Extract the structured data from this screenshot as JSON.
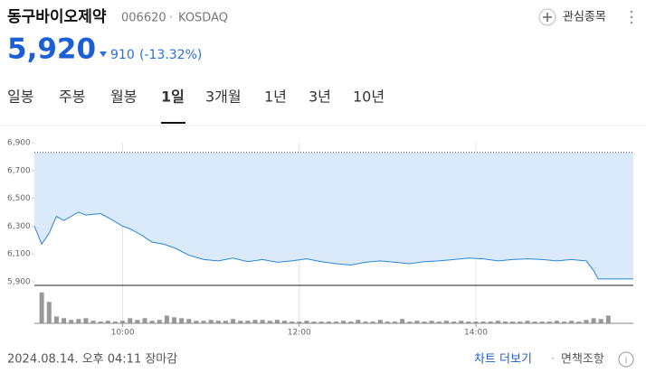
{
  "header": {
    "name": "동구바이오제약",
    "code": "006620",
    "market": "KOSDAQ",
    "watch": "관심종목"
  },
  "quote": {
    "price": "5,920",
    "change": "910",
    "change_pct": "(-13.32%)"
  },
  "tabs": [
    "일봉",
    "주봉",
    "월봉",
    "1일",
    "3개월",
    "1년",
    "3년",
    "10년"
  ],
  "chart_data": [
    {
      "type": "line",
      "color": "#2a86d8",
      "fill": "#dbeafa",
      "x": [
        540,
        545,
        550,
        555,
        560,
        570,
        575,
        585,
        592,
        600,
        605,
        612,
        620,
        628,
        636,
        645,
        655,
        665,
        675,
        685,
        695,
        705,
        715,
        725,
        735,
        745,
        755,
        765,
        775,
        785,
        795,
        805,
        815,
        825,
        835,
        845,
        855,
        865,
        875,
        885,
        895,
        905,
        915,
        920,
        923,
        947
      ],
      "values": [
        6300,
        6170,
        6250,
        6370,
        6340,
        6400,
        6380,
        6390,
        6350,
        6300,
        6280,
        6240,
        6185,
        6170,
        6140,
        6090,
        6060,
        6050,
        6070,
        6045,
        6060,
        6040,
        6050,
        6065,
        6045,
        6030,
        6020,
        6040,
        6050,
        6040,
        6030,
        6045,
        6050,
        6060,
        6070,
        6065,
        6050,
        6060,
        6065,
        6060,
        6050,
        6060,
        6050,
        5980,
        5920,
        5920
      ],
      "reference_line": 6830,
      "xlim": [
        540,
        947
      ],
      "ylim": [
        5900,
        6900
      ],
      "xticks": [
        {
          "value": 600,
          "label": "10:00"
        },
        {
          "value": 720,
          "label": "12:00"
        },
        {
          "value": 840,
          "label": "14:00"
        }
      ],
      "yticks": [
        {
          "value": 5900,
          "label": "5,900"
        },
        {
          "value": 6100,
          "label": "6,100"
        },
        {
          "value": 6300,
          "label": "6,300"
        },
        {
          "value": 6500,
          "label": "6,500"
        },
        {
          "value": 6700,
          "label": "6,700"
        },
        {
          "value": 6900,
          "label": "6,900"
        }
      ]
    },
    {
      "type": "bar",
      "color": "#999999",
      "x": [
        545,
        550,
        555,
        560,
        565,
        570,
        575,
        580,
        585,
        590,
        595,
        600,
        605,
        610,
        615,
        620,
        625,
        630,
        635,
        640,
        645,
        650,
        655,
        660,
        665,
        670,
        675,
        680,
        685,
        690,
        695,
        700,
        705,
        710,
        715,
        720,
        725,
        730,
        735,
        740,
        745,
        750,
        755,
        760,
        765,
        770,
        775,
        780,
        785,
        790,
        795,
        800,
        805,
        810,
        815,
        820,
        825,
        830,
        835,
        840,
        845,
        850,
        855,
        860,
        865,
        870,
        875,
        880,
        885,
        890,
        895,
        900,
        905,
        910,
        915,
        920,
        925,
        930
      ],
      "values": [
        36,
        25,
        8,
        6,
        4,
        5,
        6,
        3,
        2,
        3,
        2,
        3,
        6,
        4,
        6,
        3,
        4,
        9,
        7,
        6,
        5,
        3,
        3,
        4,
        3,
        3,
        5,
        3,
        3,
        4,
        4,
        3,
        4,
        3,
        2,
        2,
        3,
        2,
        2,
        2,
        2,
        3,
        2,
        4,
        2,
        2,
        4,
        2,
        2,
        5,
        2,
        3,
        2,
        3,
        2,
        3,
        2,
        3,
        2,
        2,
        2,
        2,
        3,
        2,
        2,
        2,
        3,
        2,
        2,
        2,
        3,
        2,
        3,
        2,
        4,
        6,
        5,
        9
      ],
      "xlim": [
        540,
        947
      ],
      "ylim": [
        0,
        40
      ]
    }
  ],
  "footer": {
    "timestamp": "2024.08.14. 오후 04:11 장마감",
    "more": "차트 더보기",
    "disclaimer": "면책조항"
  }
}
